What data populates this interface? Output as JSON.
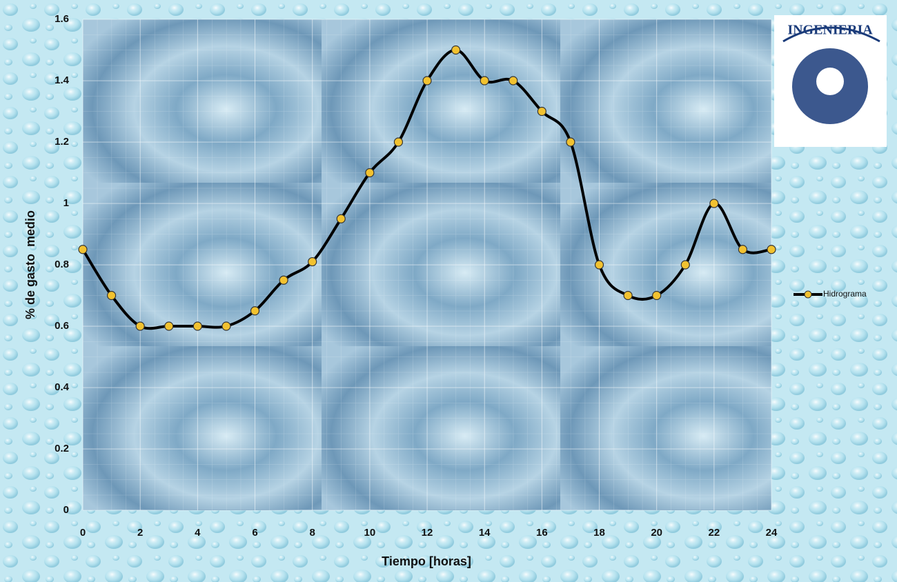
{
  "chart_data": {
    "type": "line",
    "x": [
      0,
      1,
      2,
      3,
      4,
      5,
      6,
      7,
      8,
      9,
      10,
      11,
      12,
      13,
      14,
      15,
      16,
      17,
      18,
      19,
      20,
      21,
      22,
      23,
      24
    ],
    "series": [
      {
        "name": "Hidrograma",
        "color": "#000000",
        "marker_color": "#f2c230",
        "values": [
          0.85,
          0.7,
          0.6,
          0.6,
          0.6,
          0.6,
          0.65,
          0.75,
          0.81,
          0.95,
          1.1,
          1.2,
          1.4,
          1.5,
          1.4,
          1.4,
          1.3,
          1.2,
          0.8,
          0.7,
          0.7,
          0.8,
          1.0,
          0.85,
          0.85
        ]
      }
    ],
    "xlim": [
      0,
      24
    ],
    "xticks": [
      0,
      2,
      4,
      6,
      8,
      10,
      12,
      14,
      16,
      18,
      20,
      22,
      24
    ],
    "ylim": [
      0,
      1.6
    ],
    "yticks": [
      0,
      0.2,
      0.4,
      0.6,
      0.8,
      1,
      1.2,
      1.4,
      1.6
    ],
    "xlabel": "Tiempo [horas]",
    "ylabel": "% de gasto  medio",
    "grid": true,
    "legend": "right",
    "smooth": true,
    "annotations": [
      "INGENIERIA"
    ]
  }
}
